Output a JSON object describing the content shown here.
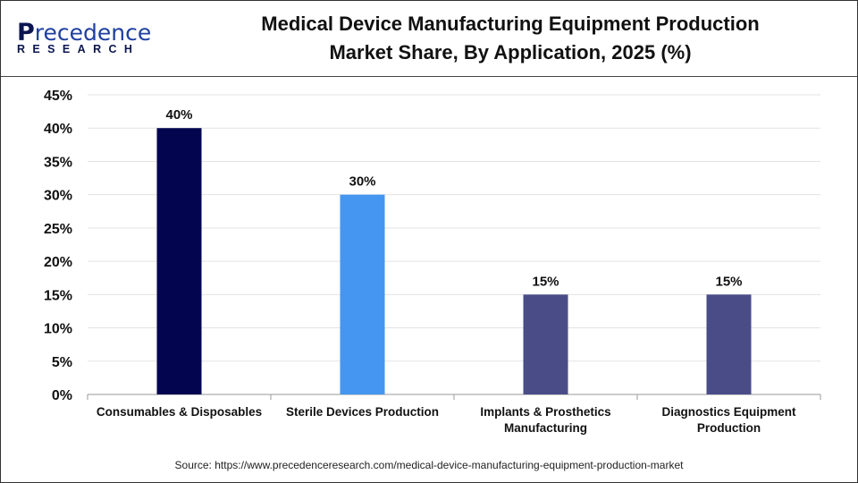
{
  "logo": {
    "line1": "Precedence",
    "line2": "RESEARCH"
  },
  "chart_data": {
    "type": "bar",
    "title": "Medical Device Manufacturing Equipment Production Market Share, By Application, 2025 (%)",
    "title_lines": [
      "Medical Device Manufacturing Equipment Production",
      "Market Share, By Application, 2025 (%)"
    ],
    "categories": [
      "Consumables & Disposables",
      "Sterile Devices Production",
      "Implants & Prosthetics Manufacturing",
      "Diagnostics Equipment Production"
    ],
    "category_lines": [
      [
        "Consumables & Disposables"
      ],
      [
        "Sterile Devices Production"
      ],
      [
        "Implants & Prosthetics",
        "Manufacturing"
      ],
      [
        "Diagnostics Equipment",
        "Production"
      ]
    ],
    "values": [
      40,
      30,
      15,
      15
    ],
    "data_labels": [
      "40%",
      "30%",
      "15%",
      "15%"
    ],
    "colors": [
      "#03064f",
      "#4596f0",
      "#4a4c88",
      "#4a4c88"
    ],
    "ylim": [
      0,
      45
    ],
    "yticks": [
      "0%",
      "5%",
      "10%",
      "15%",
      "20%",
      "25%",
      "30%",
      "35%",
      "40%",
      "45%"
    ],
    "grid": true,
    "xlabel": "",
    "ylabel": ""
  },
  "source": "Source: https://www.precedenceresearch.com/medical-device-manufacturing-equipment-production-market"
}
